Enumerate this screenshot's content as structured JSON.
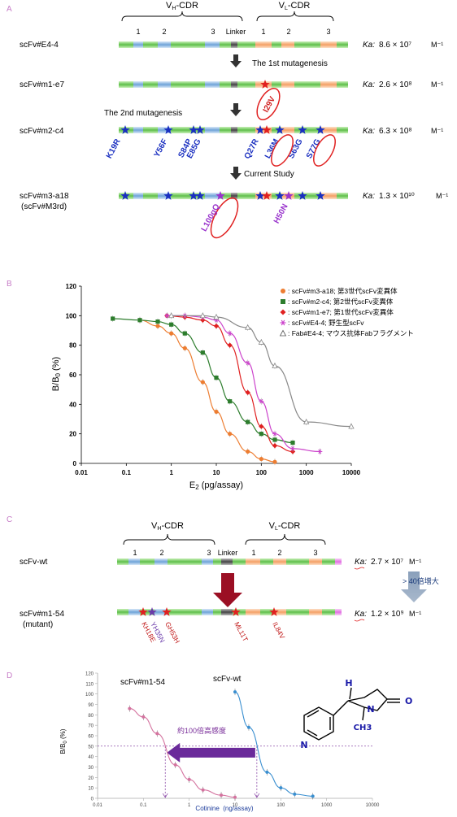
{
  "panelA": {
    "label": "A",
    "vh_cdr": "VH-CDR",
    "vl_cdr": "VL-CDR",
    "linker": "Linker",
    "cdr_numbers": [
      "1",
      "2",
      "3",
      "1",
      "2",
      "3"
    ],
    "rows": [
      {
        "name": "scFv#E4-4",
        "ka_label": "Ka:",
        "ka_value": "8.6 × 10⁷",
        "ka_unit": "M⁻¹"
      },
      {
        "name": "scFv#m1-e7",
        "ka_label": "Ka:",
        "ka_value": "2.6 × 10⁸",
        "ka_unit": "M⁻¹"
      },
      {
        "name": "scFv#m2-c4",
        "ka_label": "Ka:",
        "ka_value": "6.3 × 10⁸",
        "ka_unit": "M⁻¹"
      },
      {
        "name": "scFv#m3-a18",
        "name2": "(scFv#M3rd)",
        "ka_label": "Ka:",
        "ka_value": "1.3 × 10¹⁰",
        "ka_unit": "M⁻¹"
      }
    ],
    "steps": [
      "The 1st mutagenesis",
      "The 2nd mutagenesis",
      "Current Study"
    ],
    "mutations_m1": [
      "I29V"
    ],
    "mutations_m2": [
      "K19R",
      "Y56F",
      "S84P",
      "E85G",
      "Q27R",
      "L36M",
      "S63G",
      "S77G"
    ],
    "mutations_m3": [
      "L100gQ",
      "H50N"
    ]
  },
  "panelB": {
    "label": "B",
    "chart_data": {
      "type": "line",
      "xlabel": "E2 (pg/assay)",
      "ylabel": "B/B0 (%)",
      "xscale": "log",
      "xlim": [
        0.01,
        10000
      ],
      "ylim": [
        0,
        120
      ],
      "xticks": [
        "0.01",
        "0.1",
        "1",
        "10",
        "100",
        "1000",
        "10000"
      ],
      "yticks": [
        "0",
        "20",
        "40",
        "60",
        "80",
        "100",
        "120"
      ],
      "legend_position": "top-right",
      "series": [
        {
          "name": "scFv#m3-a18; 第3世代scFv変異体",
          "color": "#ed7d31",
          "marker": "circle",
          "x": [
            0.2,
            0.5,
            1,
            2,
            5,
            10,
            20,
            50,
            100,
            200
          ],
          "y": [
            97,
            93,
            88,
            78,
            55,
            35,
            20,
            8,
            3,
            1
          ]
        },
        {
          "name": "scFv#m2-c4; 第2世代scFv変異体",
          "color": "#2d7d2d",
          "marker": "square",
          "x": [
            0.05,
            0.2,
            0.5,
            1,
            2,
            5,
            10,
            20,
            50,
            100,
            200,
            500
          ],
          "y": [
            98,
            97,
            96,
            94,
            88,
            75,
            58,
            42,
            28,
            20,
            16,
            14
          ]
        },
        {
          "name": "scFv#m1-e7; 第1世代scFv変異体",
          "color": "#e02020",
          "marker": "diamond",
          "x": [
            0.8,
            2,
            5,
            10,
            20,
            50,
            100,
            200,
            500
          ],
          "y": [
            100,
            99,
            97,
            93,
            80,
            48,
            25,
            12,
            8
          ]
        },
        {
          "name": "scFv#E4-4; 野生型scFv",
          "color": "#cc44cc",
          "marker": "asterisk",
          "x": [
            0.8,
            2,
            5,
            10,
            20,
            50,
            100,
            200,
            500,
            2000
          ],
          "y": [
            100,
            100,
            99,
            97,
            88,
            68,
            42,
            20,
            10,
            8
          ]
        },
        {
          "name": "Fab#E4-4; マウス抗体Fabフラグメント",
          "color": "#888888",
          "marker": "triangle",
          "x": [
            1,
            5,
            10,
            50,
            100,
            200,
            1000,
            10000
          ],
          "y": [
            100,
            100,
            99,
            92,
            82,
            66,
            28,
            25
          ]
        }
      ]
    }
  },
  "panelC": {
    "label": "C",
    "vh_cdr": "VH-CDR",
    "vl_cdr": "VL-CDR",
    "linker": "Linker",
    "cdr_numbers": [
      "1",
      "2",
      "3",
      "1",
      "2",
      "3"
    ],
    "rows": [
      {
        "name": "scFv-wt",
        "ka_label": "Ka:",
        "ka_value": "2.7 × 10⁷",
        "ka_unit": "M⁻¹"
      },
      {
        "name": "scFv#m1-54",
        "name2": "(mutant)",
        "ka_label": "Ka:",
        "ka_value": "1.2 × 10⁹",
        "ka_unit": "M⁻¹"
      }
    ],
    "increase_text": "> 40倍増大",
    "mutations": [
      "KH18E",
      "YH35N",
      "GH53H",
      "ML11T",
      "IL84V"
    ]
  },
  "panelD": {
    "label": "D",
    "annotation": "約100倍高感度",
    "label_left": "scFv#m1-54",
    "label_right": "scFv-wt",
    "molecule_atoms": [
      "H",
      "N",
      "O",
      "N",
      "CH3"
    ],
    "chart_data": {
      "type": "line",
      "xlabel": "Cotinine  (ng/assay)",
      "ylabel": "B/B0 (%)",
      "xscale": "log",
      "xlim": [
        0.01,
        10000
      ],
      "ylim": [
        0,
        120
      ],
      "xticks": [
        "0.01",
        "0.1",
        "1",
        "10",
        "100",
        "1000",
        "10000"
      ],
      "yticks": [
        "0",
        "10",
        "20",
        "30",
        "40",
        "50",
        "60",
        "70",
        "80",
        "90",
        "100",
        "110",
        "120"
      ],
      "grid": false,
      "series": [
        {
          "name": "scFv#m1-54",
          "color": "#d4739f",
          "x": [
            0.05,
            0.1,
            0.2,
            0.5,
            1,
            2,
            5,
            10
          ],
          "y": [
            86,
            78,
            62,
            32,
            18,
            8,
            3,
            1
          ]
        },
        {
          "name": "scFv-wt",
          "color": "#3a8fd0",
          "x": [
            10,
            20,
            50,
            100,
            200,
            500
          ],
          "y": [
            102,
            68,
            25,
            10,
            4,
            2
          ]
        }
      ]
    }
  }
}
